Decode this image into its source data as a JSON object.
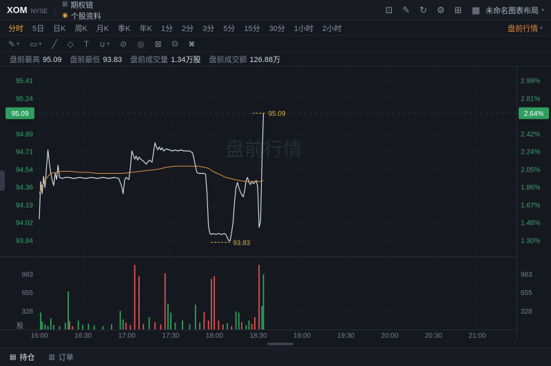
{
  "topbar": {
    "symbol": "XOM",
    "exchange": "NYSE",
    "tabs": [
      {
        "name": "options-chain",
        "label": "期权链",
        "icon": "options-chain-icon",
        "glyph": "⊞"
      },
      {
        "name": "stock-info",
        "label": "个股资料",
        "icon": "stock-info-icon",
        "glyph": "◉",
        "icon_color": "#d9a24a"
      }
    ],
    "icons": [
      {
        "name": "screenshot-icon",
        "glyph": "⊡"
      },
      {
        "name": "edit-icon",
        "glyph": "✎"
      },
      {
        "name": "refresh-icon",
        "glyph": "↻"
      },
      {
        "name": "settings-icon",
        "glyph": "⚙"
      },
      {
        "name": "add-panel-icon",
        "glyph": "⊞"
      },
      {
        "name": "grid-layout-icon",
        "glyph": "▦"
      }
    ],
    "layout_name": "未命名图表布局"
  },
  "timeframe_bar": {
    "items": [
      "分时",
      "5日",
      "日K",
      "周K",
      "月K",
      "季K",
      "年K",
      "1分",
      "2分",
      "3分",
      "5分",
      "15分",
      "30分",
      "1小时",
      "2小时"
    ],
    "active": "分时",
    "session_label": "盘前行情"
  },
  "drawing_toolbar": {
    "tools": [
      {
        "name": "draw-tool-icon",
        "glyph": "✎",
        "caret": true
      },
      {
        "name": "shape-tool-icon",
        "glyph": "▭",
        "caret": true
      },
      {
        "name": "trendline-tool-icon",
        "glyph": "╱",
        "caret": false
      },
      {
        "name": "fibonacci-tool-icon",
        "glyph": "◇",
        "caret": false
      },
      {
        "name": "text-tool-icon",
        "glyph": "T",
        "caret": false
      },
      {
        "name": "magnet-tool-icon",
        "glyph": "∪",
        "caret": true
      },
      {
        "name": "eraser-tool-icon",
        "glyph": "⊘",
        "caret": false
      },
      {
        "name": "visibility-tool-icon",
        "glyph": "◎",
        "caret": false
      },
      {
        "name": "lock-tool-icon",
        "glyph": "⊠",
        "caret": false
      },
      {
        "name": "layers-tool-icon",
        "glyph": "⧉",
        "caret": false
      },
      {
        "name": "delete-tool-icon",
        "glyph": "✖",
        "caret": false
      }
    ]
  },
  "stats": {
    "items": [
      {
        "name": "premarket-high",
        "label": "盘前最高",
        "value": "95.09"
      },
      {
        "name": "premarket-low",
        "label": "盘前最低",
        "value": "93.83"
      },
      {
        "name": "premarket-volume",
        "label": "盘前成交量",
        "value": "1.34万股"
      },
      {
        "name": "premarket-turnover",
        "label": "盘前成交额",
        "value": "126.88万"
      }
    ]
  },
  "bottom_tabs": [
    {
      "name": "positions",
      "label": "持仓",
      "glyph": "▤",
      "active": true
    },
    {
      "name": "orders",
      "label": "订单",
      "glyph": "▥",
      "active": false
    }
  ],
  "colors": {
    "accent_orange": "#e8a13f",
    "session_orange": "#e0873c",
    "up_green": "#2fa35e",
    "down_red": "#e0514f",
    "badge_green": "#2f9e5f",
    "axis_green": "#3aa370",
    "axis_gray": "#78818f",
    "price_line": "#d7dbe2",
    "avg_line": "#e0973f",
    "label_yellow": "#d9b13d"
  },
  "chart_data": {
    "type": "line",
    "watermark": "盘前行情",
    "x_axis": {
      "ticks": [
        "16:00",
        "16:30",
        "17:00",
        "17:30",
        "18:00",
        "18:30",
        "19:00",
        "19:30",
        "20:00",
        "20:30",
        "21:00"
      ],
      "range_minutes": [
        0,
        330
      ]
    },
    "price_axis": {
      "left_ticks": [
        "95.41",
        "95.24",
        "",
        "94.89",
        "94.71",
        "94.54",
        "94.36",
        "94.19",
        "94.02",
        "93.84"
      ],
      "right_ticks": [
        "2.99%",
        "2.81%",
        "",
        "2.42%",
        "2.24%",
        "2.05%",
        "1.86%",
        "1.67%",
        "1.48%",
        "1.30%"
      ],
      "current_price": 95.09,
      "current_price_badge": "95.09",
      "current_pct_badge": "2.64%"
    },
    "volume_axis": {
      "ticks": [
        "983",
        "655",
        "328"
      ],
      "values": [
        983,
        655,
        328
      ],
      "unit": "股"
    },
    "series": [
      {
        "name": "price",
        "color": "#d7dbe2",
        "points": [
          [
            0,
            94.05
          ],
          [
            1,
            94.42
          ],
          [
            2,
            94.3
          ],
          [
            3,
            94.47
          ],
          [
            4,
            94.36
          ],
          [
            5,
            94.56
          ],
          [
            6,
            94.73
          ],
          [
            7,
            94.6
          ],
          [
            8,
            94.5
          ],
          [
            9,
            94.43
          ],
          [
            10,
            94.38
          ],
          [
            11,
            94.5
          ],
          [
            12,
            94.44
          ],
          [
            13,
            94.58
          ],
          [
            14,
            94.46
          ],
          [
            16,
            94.45
          ],
          [
            18,
            94.46
          ],
          [
            20,
            94.46
          ],
          [
            24,
            94.45
          ],
          [
            28,
            94.46
          ],
          [
            32,
            94.45
          ],
          [
            36,
            94.46
          ],
          [
            40,
            94.45
          ],
          [
            44,
            94.46
          ],
          [
            48,
            94.45
          ],
          [
            52,
            94.46
          ],
          [
            55,
            94.45
          ],
          [
            57,
            94.37
          ],
          [
            58,
            94.3
          ],
          [
            59,
            94.43
          ],
          [
            60,
            94.46
          ],
          [
            62,
            94.44
          ],
          [
            63,
            94.56
          ],
          [
            64,
            94.72
          ],
          [
            65,
            94.68
          ],
          [
            66,
            94.64
          ],
          [
            67,
            94.67
          ],
          [
            68,
            94.63
          ],
          [
            69,
            94.66
          ],
          [
            70,
            94.64
          ],
          [
            72,
            94.62
          ],
          [
            74,
            94.59
          ],
          [
            76,
            94.63
          ],
          [
            78,
            94.61
          ],
          [
            80,
            94.8
          ],
          [
            81,
            94.76
          ],
          [
            82,
            94.73
          ],
          [
            83,
            94.76
          ],
          [
            84,
            94.73
          ],
          [
            85,
            94.75
          ],
          [
            86,
            94.72
          ],
          [
            88,
            94.74
          ],
          [
            90,
            94.73
          ],
          [
            92,
            94.72
          ],
          [
            94,
            94.73
          ],
          [
            96,
            94.72
          ],
          [
            98,
            94.73
          ],
          [
            100,
            94.72
          ],
          [
            102,
            94.72
          ],
          [
            104,
            94.72
          ],
          [
            106,
            94.7
          ],
          [
            107,
            94.64
          ],
          [
            108,
            94.57
          ],
          [
            109,
            94.51
          ],
          [
            110,
            94.5
          ],
          [
            112,
            94.5
          ],
          [
            114,
            94.5
          ],
          [
            115,
            94.49
          ],
          [
            116,
            94.3
          ],
          [
            117,
            93.98
          ],
          [
            118,
            93.91
          ],
          [
            119,
            93.9
          ],
          [
            120,
            93.91
          ],
          [
            122,
            93.9
          ],
          [
            124,
            93.91
          ],
          [
            126,
            93.9
          ],
          [
            128,
            93.91
          ],
          [
            129,
            93.9
          ],
          [
            130,
            93.87
          ],
          [
            131,
            93.84
          ],
          [
            132,
            93.84
          ],
          [
            133,
            93.92
          ],
          [
            134,
            94.02
          ],
          [
            135,
            94.22
          ],
          [
            136,
            94.36
          ],
          [
            137,
            94.41
          ],
          [
            138,
            94.36
          ],
          [
            139,
            94.32
          ],
          [
            140,
            94.29
          ],
          [
            141,
            94.27
          ],
          [
            142,
            94.33
          ],
          [
            143,
            94.43
          ],
          [
            144,
            94.46
          ],
          [
            145,
            94.41
          ],
          [
            146,
            94.39
          ],
          [
            147,
            94.42
          ],
          [
            148,
            94.4
          ],
          [
            149,
            94.41
          ],
          [
            150,
            94.43
          ],
          [
            151,
            94.37
          ],
          [
            152,
            93.97
          ],
          [
            153,
            94.03
          ],
          [
            154,
            94.62
          ],
          [
            155,
            95.09
          ]
        ]
      },
      {
        "name": "average",
        "color": "#e0973f",
        "points": [
          [
            0,
            94.3
          ],
          [
            2,
            94.38
          ],
          [
            4,
            94.43
          ],
          [
            6,
            94.47
          ],
          [
            8,
            94.5
          ],
          [
            12,
            94.51
          ],
          [
            16,
            94.52
          ],
          [
            22,
            94.52
          ],
          [
            28,
            94.51
          ],
          [
            34,
            94.51
          ],
          [
            40,
            94.5
          ],
          [
            46,
            94.5
          ],
          [
            52,
            94.5
          ],
          [
            58,
            94.5
          ],
          [
            64,
            94.51
          ],
          [
            70,
            94.52
          ],
          [
            76,
            94.53
          ],
          [
            82,
            94.54
          ],
          [
            88,
            94.56
          ],
          [
            94,
            94.57
          ],
          [
            100,
            94.57
          ],
          [
            106,
            94.57
          ],
          [
            110,
            94.57
          ],
          [
            114,
            94.56
          ],
          [
            117,
            94.55
          ],
          [
            120,
            94.52
          ],
          [
            123,
            94.5
          ],
          [
            126,
            94.48
          ],
          [
            129,
            94.46
          ],
          [
            132,
            94.45
          ],
          [
            135,
            94.44
          ],
          [
            138,
            94.43
          ],
          [
            142,
            94.42
          ],
          [
            146,
            94.42
          ],
          [
            150,
            94.42
          ],
          [
            153,
            94.42
          ],
          [
            155,
            94.43
          ]
        ]
      }
    ],
    "volume_bars": [
      [
        1,
        300,
        "up"
      ],
      [
        2,
        140,
        "up"
      ],
      [
        4,
        90,
        "up"
      ],
      [
        6,
        60,
        "up"
      ],
      [
        8,
        200,
        "up"
      ],
      [
        10,
        80,
        "up"
      ],
      [
        14,
        60,
        "up"
      ],
      [
        18,
        120,
        "up"
      ],
      [
        20,
        680,
        "up"
      ],
      [
        21,
        150,
        "down"
      ],
      [
        23,
        60,
        "down"
      ],
      [
        27,
        160,
        "up"
      ],
      [
        30,
        80,
        "up"
      ],
      [
        34,
        100,
        "up"
      ],
      [
        38,
        70,
        "up"
      ],
      [
        44,
        60,
        "up"
      ],
      [
        50,
        90,
        "up"
      ],
      [
        56,
        330,
        "up"
      ],
      [
        58,
        180,
        "up"
      ],
      [
        60,
        120,
        "down"
      ],
      [
        63,
        80,
        "down"
      ],
      [
        66,
        1150,
        "down"
      ],
      [
        69,
        950,
        "down"
      ],
      [
        72,
        100,
        "down"
      ],
      [
        76,
        220,
        "up"
      ],
      [
        80,
        130,
        "down"
      ],
      [
        84,
        90,
        "down"
      ],
      [
        87,
        1000,
        "down"
      ],
      [
        89,
        460,
        "up"
      ],
      [
        91,
        300,
        "up"
      ],
      [
        94,
        120,
        "up"
      ],
      [
        99,
        160,
        "up"
      ],
      [
        104,
        90,
        "up"
      ],
      [
        108,
        440,
        "up"
      ],
      [
        111,
        120,
        "up"
      ],
      [
        114,
        310,
        "down"
      ],
      [
        117,
        160,
        "down"
      ],
      [
        119,
        900,
        "down"
      ],
      [
        121,
        950,
        "down"
      ],
      [
        124,
        160,
        "down"
      ],
      [
        127,
        90,
        "down"
      ],
      [
        130,
        110,
        "up"
      ],
      [
        133,
        60,
        "down"
      ],
      [
        136,
        320,
        "up"
      ],
      [
        138,
        300,
        "up"
      ],
      [
        140,
        130,
        "down"
      ],
      [
        143,
        80,
        "up"
      ],
      [
        145,
        160,
        "up"
      ],
      [
        147,
        100,
        "down"
      ],
      [
        149,
        220,
        "down"
      ],
      [
        152,
        1150,
        "down"
      ],
      [
        154,
        420,
        "up"
      ],
      [
        155,
        983,
        "up"
      ]
    ],
    "annotations": {
      "high_label": "95.09",
      "high_t": 155,
      "high_price": 95.09,
      "low_label": "93.83",
      "low_t": 132,
      "low_price": 93.84
    }
  }
}
